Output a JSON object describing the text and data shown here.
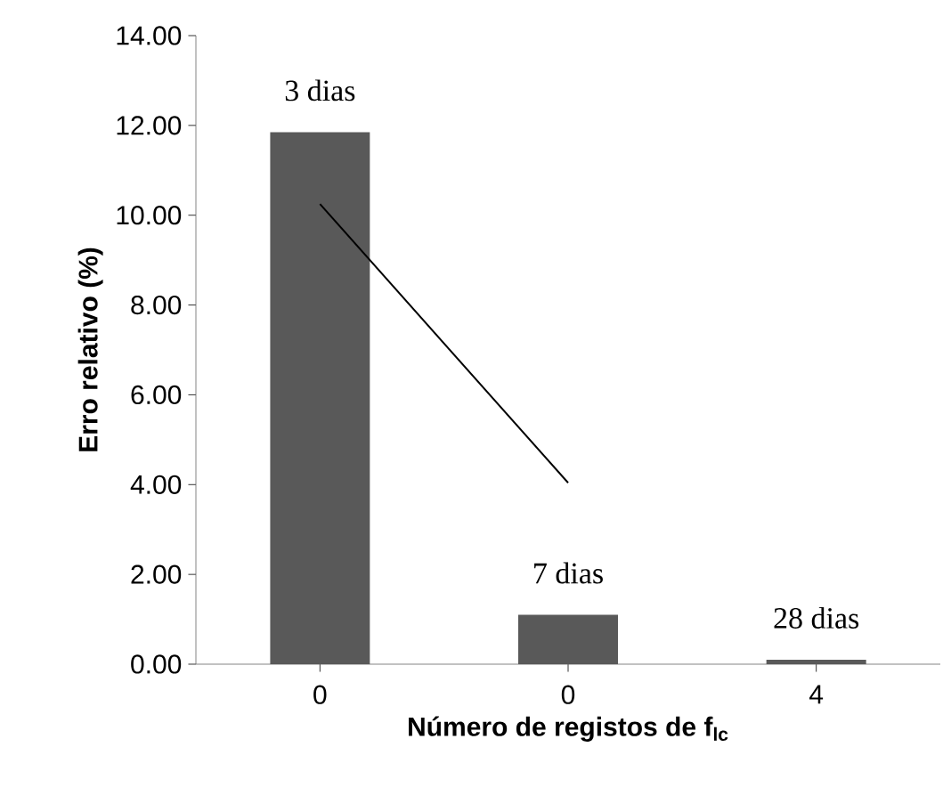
{
  "chart_data": {
    "type": "bar",
    "xlabel": "Número de registos de f$_{lc}$",
    "ylabel": "Erro relativo (%)",
    "categories": [
      "0",
      "0",
      "4"
    ],
    "series": [
      {
        "color": "#595959",
        "values": [
          11.85,
          1.1,
          0.1
        ]
      },
      {
        "type": "line",
        "color": "#000000",
        "values": [
          10.25,
          4.04,
          null
        ]
      }
    ],
    "ylim": [
      0,
      14
    ],
    "yticks": [
      {
        "value": 0,
        "label": "0.00"
      },
      {
        "value": 2,
        "label": "2.00"
      },
      {
        "value": 4,
        "label": "4.00"
      },
      {
        "value": 6,
        "label": "6.00"
      },
      {
        "value": 8,
        "label": "8.00"
      },
      {
        "value": 10,
        "label": "10.00"
      },
      {
        "value": 12,
        "label": "12.00"
      },
      {
        "value": 14,
        "label": "14.00"
      }
    ],
    "annotations": [
      "3 dias",
      "7 dias",
      "28 dias"
    ]
  }
}
